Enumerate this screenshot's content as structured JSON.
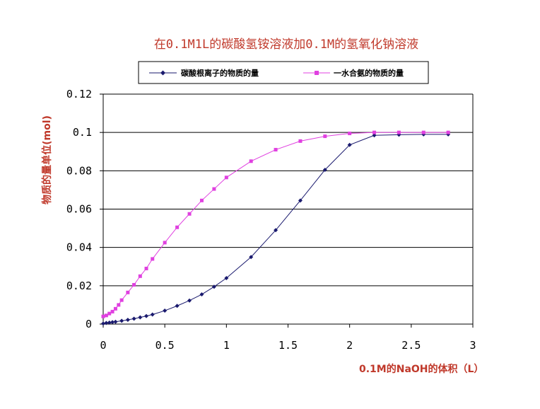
{
  "chart_data": {
    "type": "line",
    "title": "在0.1M1L的碳酸氢铵溶液加0.1M的氢氧化钠溶液",
    "xlabel": "0.1M的NaOH的体积（L）",
    "ylabel": "物质的量单位(mol)",
    "xlim": [
      0,
      3
    ],
    "ylim": [
      0,
      0.12
    ],
    "x_ticks": [
      "0",
      "0.5",
      "1",
      "1.5",
      "2",
      "2.5",
      "3"
    ],
    "y_ticks": [
      "0",
      "0.02",
      "0.04",
      "0.06",
      "0.08",
      "0.1",
      "0.12"
    ],
    "grid": "horizontal",
    "legend_position": "top",
    "series": [
      {
        "name": "碳酸根离子的物质的量",
        "color": "#1a1a6e",
        "marker": "diamond",
        "x": [
          0,
          0.025,
          0.05,
          0.075,
          0.1,
          0.15,
          0.2,
          0.25,
          0.3,
          0.35,
          0.4,
          0.5,
          0.6,
          0.7,
          0.8,
          0.9,
          1.0,
          1.2,
          1.4,
          1.6,
          1.8,
          2.0,
          2.2,
          2.4,
          2.6,
          2.8
        ],
        "y": [
          0.0003,
          0.0006,
          0.0008,
          0.001,
          0.0012,
          0.0017,
          0.0022,
          0.0028,
          0.0035,
          0.0042,
          0.005,
          0.007,
          0.0095,
          0.0123,
          0.0155,
          0.0195,
          0.024,
          0.035,
          0.049,
          0.0645,
          0.0805,
          0.0935,
          0.0985,
          0.0988,
          0.099,
          0.099
        ]
      },
      {
        "name": "一水合氨的物质的量",
        "color": "#e040e0",
        "marker": "square",
        "x": [
          0,
          0.025,
          0.05,
          0.075,
          0.1,
          0.125,
          0.15,
          0.2,
          0.25,
          0.3,
          0.35,
          0.4,
          0.5,
          0.6,
          0.7,
          0.8,
          0.9,
          1.0,
          1.2,
          1.4,
          1.6,
          1.8,
          2.0,
          2.2,
          2.4,
          2.6,
          2.8
        ],
        "y": [
          0.004,
          0.0045,
          0.0055,
          0.0065,
          0.008,
          0.01,
          0.0125,
          0.0165,
          0.0205,
          0.025,
          0.029,
          0.034,
          0.0425,
          0.0505,
          0.0575,
          0.0645,
          0.0705,
          0.0765,
          0.085,
          0.091,
          0.0955,
          0.098,
          0.0995,
          0.1,
          0.1,
          0.1,
          0.1
        ]
      }
    ]
  }
}
